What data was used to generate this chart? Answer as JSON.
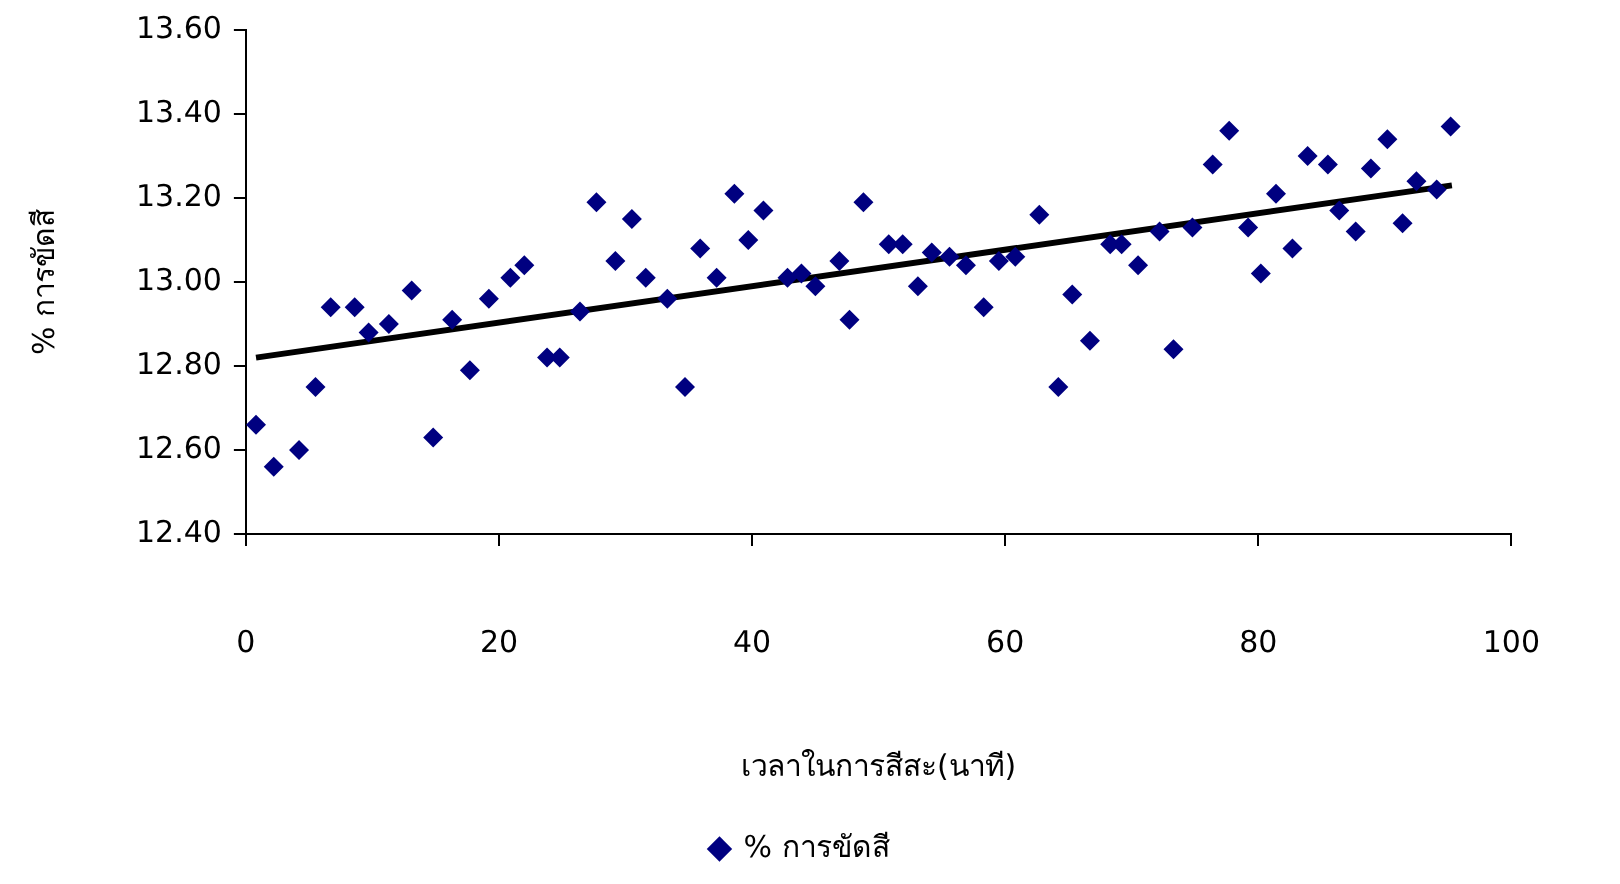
{
  "chart_data": {
    "type": "scatter",
    "xlabel": "เวลาในการสีสะ(นาที)",
    "ylabel": "% การขัดสี",
    "xlim": [
      0,
      100
    ],
    "xticks": [
      0,
      20,
      40,
      60,
      80,
      100
    ],
    "ylim": [
      12.4,
      13.6
    ],
    "yticks": [
      {
        "value": 12.4,
        "label": "12.40"
      },
      {
        "value": 12.6,
        "label": "12.60"
      },
      {
        "value": 12.8,
        "label": "12.80"
      },
      {
        "value": 13.0,
        "label": "13.00"
      },
      {
        "value": 13.2,
        "label": "13.20"
      },
      {
        "value": 13.4,
        "label": "13.40"
      },
      {
        "value": 13.6,
        "label": "13.60"
      }
    ],
    "grid": false,
    "legend": "bottom",
    "marker": "diamond",
    "series": [
      {
        "name": "% การขัดสี",
        "color": "#000080",
        "x": [
          0.8,
          2.2,
          4.2,
          5.5,
          6.7,
          8.6,
          9.7,
          11.3,
          13.1,
          14.8,
          16.3,
          17.7,
          19.2,
          20.9,
          22.0,
          23.8,
          24.8,
          26.4,
          27.7,
          29.2,
          30.5,
          31.6,
          33.3,
          34.7,
          35.9,
          37.2,
          38.6,
          39.7,
          40.9,
          42.8,
          43.9,
          45.0,
          46.9,
          47.7,
          48.8,
          50.8,
          51.9,
          53.1,
          54.2,
          55.6,
          56.9,
          58.3,
          59.5,
          60.8,
          62.7,
          64.2,
          65.3,
          66.7,
          68.3,
          69.2,
          70.5,
          72.2,
          73.3,
          74.8,
          76.4,
          77.7,
          79.2,
          80.2,
          81.4,
          82.7,
          83.9,
          85.5,
          86.4,
          87.7,
          88.9,
          90.2,
          91.4,
          92.5,
          94.1,
          95.2
        ],
        "values": [
          12.66,
          12.56,
          12.6,
          12.75,
          12.94,
          12.94,
          12.88,
          12.9,
          12.98,
          12.63,
          12.91,
          12.79,
          12.96,
          13.01,
          13.04,
          12.82,
          12.82,
          12.93,
          13.19,
          13.05,
          13.15,
          13.01,
          12.96,
          12.75,
          13.08,
          13.01,
          13.21,
          13.1,
          13.17,
          13.01,
          13.02,
          12.99,
          13.05,
          12.91,
          13.19,
          13.09,
          13.09,
          12.99,
          13.07,
          13.06,
          13.04,
          12.94,
          13.05,
          13.06,
          13.16,
          12.75,
          12.97,
          12.86,
          13.09,
          13.09,
          13.04,
          13.12,
          12.84,
          13.13,
          13.28,
          13.36,
          13.13,
          13.02,
          13.21,
          13.08,
          13.3,
          13.28,
          13.17,
          13.12,
          13.27,
          13.34,
          13.14,
          13.24,
          13.22,
          13.37
        ]
      },
      {
        "type": "line",
        "color": "#000000",
        "line_style": "solid",
        "marker": "none",
        "x": [
          0.8,
          95.3
        ],
        "values": [
          12.82,
          13.23
        ]
      }
    ]
  }
}
